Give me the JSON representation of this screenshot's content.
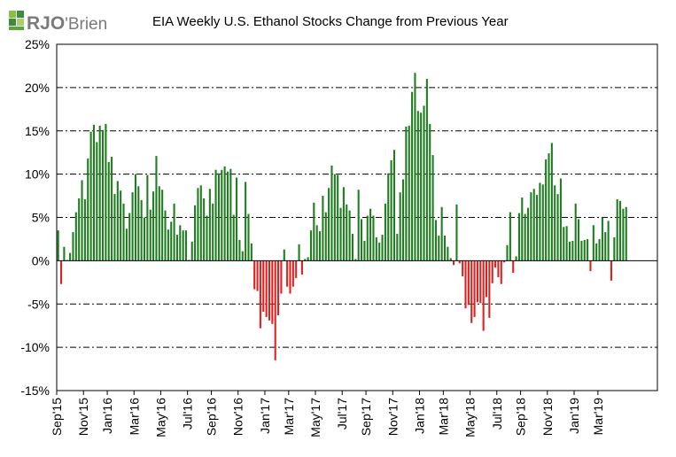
{
  "brand": {
    "logo_text": "RJO'Brien",
    "logo_mark": "RJO",
    "logo_sub": "'Brien",
    "accent": "#2e7d32"
  },
  "chart_data": {
    "type": "bar",
    "title": "EIA Weekly U.S. Ethanol Stocks Change from Previous Year",
    "xlabel": "",
    "ylabel": "",
    "ylim": [
      -15,
      25
    ],
    "y_ticks": [
      "25%",
      "20%",
      "15%",
      "10%",
      "5%",
      "0%",
      "-5%",
      "-10%",
      "-15%"
    ],
    "y_tick_values": [
      25,
      20,
      15,
      10,
      5,
      0,
      -5,
      -10,
      -15
    ],
    "x_tick_labels": [
      "Sep'15",
      "Nov'15",
      "Jan'16",
      "Mar'16",
      "May'16",
      "Jul'16",
      "Sep'16",
      "Nov'16",
      "Jan'17",
      "Mar'17",
      "May'17",
      "Jul'17",
      "Sep'17",
      "Nov'17",
      "Jan'18",
      "Mar'18",
      "May'18",
      "Jul'18",
      "Sep'18",
      "Nov'18",
      "Jan'19",
      "Mar'19"
    ],
    "x_tick_weeks": [
      0,
      9,
      17,
      26,
      35,
      44,
      52,
      61,
      70,
      78,
      87,
      96,
      104,
      113,
      122,
      130,
      139,
      148,
      156,
      165,
      174,
      182
    ],
    "colors": {
      "positive": "#1e7d1e",
      "negative": "#e0201e",
      "grid": "#000000"
    },
    "grid": true,
    "values": [
      3.5,
      -2.7,
      1.6,
      0.1,
      0.9,
      3.3,
      5.6,
      7.2,
      9.3,
      7.1,
      11.8,
      14.9,
      15.7,
      13.7,
      15.6,
      15.1,
      15.8,
      11.4,
      12.0,
      7.7,
      9.2,
      8.1,
      6.6,
      3.7,
      5.5,
      7.9,
      10.0,
      8.6,
      7.0,
      5.0,
      9.9,
      5.9,
      8.0,
      12.1,
      8.6,
      8.2,
      5.8,
      3.6,
      4.5,
      6.6,
      3.0,
      4.1,
      3.5,
      3.5,
      0.1,
      2.2,
      6.4,
      8.4,
      8.7,
      7.2,
      5.2,
      8.3,
      6.6,
      10.5,
      10.1,
      10.5,
      10.9,
      10.3,
      10.6,
      5.3,
      9.6,
      2.4,
      1.1,
      9.1,
      5.4,
      2.0,
      -3.3,
      -3.5,
      -7.8,
      -5.9,
      -6.5,
      -6.9,
      -7.3,
      -11.5,
      -6.3,
      -3.8,
      1.3,
      -3.0,
      -3.8,
      -3.0,
      -2.0,
      1.9,
      -1.6,
      0.2,
      0.4,
      3.5,
      6.7,
      4.1,
      3.4,
      7.5,
      5.6,
      8.4,
      11.0,
      10.0,
      9.9,
      6.1,
      8.5,
      6.5,
      5.8,
      3.1,
      0.2,
      8.2,
      4.8,
      2.3,
      5.2,
      6.0,
      5.2,
      2.7,
      2.1,
      3.0,
      6.6,
      10.1,
      11.6,
      12.8,
      3.1,
      7.9,
      9.4,
      15.5,
      15.6,
      19.5,
      21.7,
      17.3,
      17.1,
      17.9,
      21.0,
      15.8,
      12.2,
      4.7,
      2.9,
      6.2,
      2.9,
      1.6,
      0.3,
      -0.5,
      6.5,
      -0.3,
      -1.8,
      -5.5,
      -5.1,
      -7.2,
      -6.5,
      -4.8,
      -4.9,
      -8.1,
      -4.2,
      -6.6,
      -2.6,
      -0.8,
      -1.9,
      -2.7,
      -0.2,
      1.8,
      5.6,
      -1.4,
      0.5,
      5.5,
      7.3,
      5.4,
      6.1,
      7.9,
      8.3,
      7.6,
      9.0,
      8.8,
      11.7,
      12.4,
      13.6,
      8.7,
      7.7,
      9.5,
      3.9,
      4.0,
      2.2,
      2.3,
      6.6,
      4.8,
      2.3,
      2.4,
      2.5,
      -1.2,
      4.1,
      2.0,
      2.5,
      5.0,
      3.3,
      4.6,
      -2.3,
      2.7,
      7.1,
      6.9,
      6.0,
      6.2
    ]
  }
}
